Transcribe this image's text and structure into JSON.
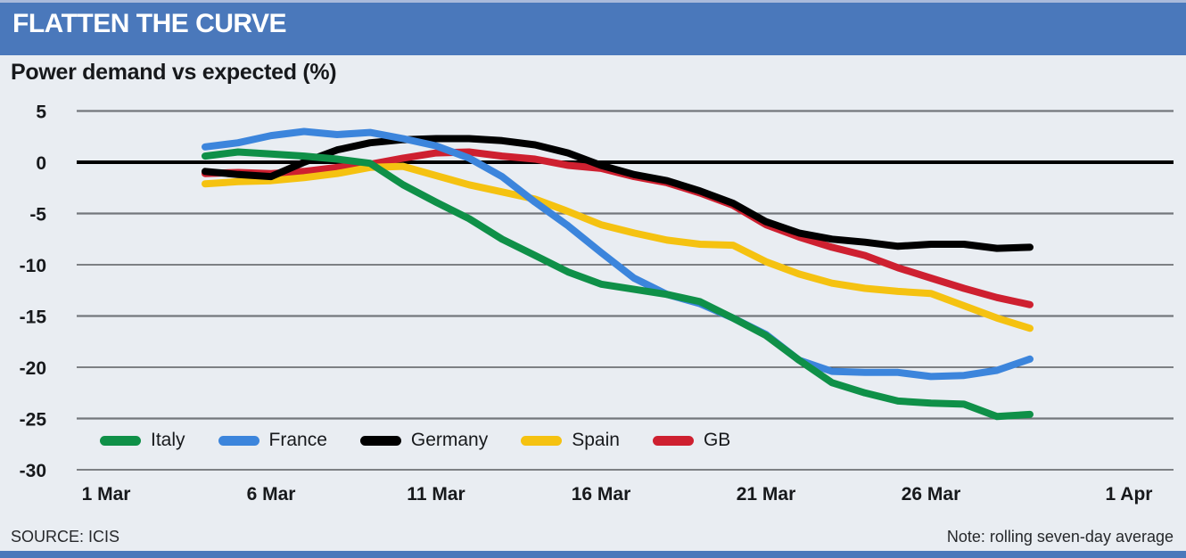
{
  "header": {
    "title": "FLATTEN THE CURVE"
  },
  "subtitle": "Power demand vs expected (%)",
  "footer": {
    "source": "SOURCE: ICIS",
    "note": "Note: rolling seven-day average"
  },
  "colors": {
    "accent_blue": "#4a78bb",
    "background": "#e9edf2",
    "gridline": "#73777c",
    "zero_line": "#000000",
    "text": "#17191c"
  },
  "chart_data": {
    "type": "line",
    "title": "Power demand vs expected (%)",
    "xlabel": "",
    "ylabel": "Power demand vs expected (%)",
    "ylim": [
      -30,
      5
    ],
    "grid": true,
    "legend_position": "bottom-inside",
    "y_ticks": [
      5,
      0,
      -5,
      -10,
      -15,
      -20,
      -25,
      -30
    ],
    "x_ticks": [
      {
        "label": "1 Mar",
        "day": 1
      },
      {
        "label": "6 Mar",
        "day": 6
      },
      {
        "label": "11 Mar",
        "day": 11
      },
      {
        "label": "16 Mar",
        "day": 16
      },
      {
        "label": "21 Mar",
        "day": 21
      },
      {
        "label": "26 Mar",
        "day": 26
      },
      {
        "label": "1 Apr",
        "day": 32
      }
    ],
    "start_day": 4,
    "dates": [
      "4 Mar",
      "5 Mar",
      "6 Mar",
      "7 Mar",
      "8 Mar",
      "9 Mar",
      "10 Mar",
      "11 Mar",
      "12 Mar",
      "13 Mar",
      "14 Mar",
      "15 Mar",
      "16 Mar",
      "17 Mar",
      "18 Mar",
      "19 Mar",
      "20 Mar",
      "21 Mar",
      "22 Mar",
      "23 Mar",
      "24 Mar",
      "25 Mar",
      "26 Mar",
      "27 Mar",
      "28 Mar",
      "29 Mar"
    ],
    "series": [
      {
        "name": "Italy",
        "color": "#0f9048",
        "values": [
          0.6,
          1.0,
          0.8,
          0.6,
          0.3,
          -0.1,
          -2.2,
          -3.9,
          -5.5,
          -7.5,
          -9.1,
          -10.7,
          -11.9,
          -12.4,
          -12.9,
          -13.6,
          -15.2,
          -16.9,
          -19.3,
          -21.5,
          -22.5,
          -23.3,
          -23.5,
          -23.6,
          -24.8,
          -24.6
        ]
      },
      {
        "name": "France",
        "color": "#3c85dc",
        "values": [
          1.5,
          1.9,
          2.6,
          3.0,
          2.7,
          2.9,
          2.3,
          1.6,
          0.4,
          -1.4,
          -3.9,
          -6.2,
          -8.8,
          -11.3,
          -12.9,
          -13.8,
          -15.2,
          -16.8,
          -19.3,
          -20.4,
          -20.5,
          -20.5,
          -20.9,
          -20.8,
          -20.3,
          -19.2
        ]
      },
      {
        "name": "Germany",
        "color": "#000000",
        "values": [
          -0.9,
          -1.2,
          -1.4,
          0.0,
          1.2,
          1.9,
          2.2,
          2.3,
          2.3,
          2.1,
          1.7,
          0.9,
          -0.3,
          -1.2,
          -1.8,
          -2.8,
          -4.0,
          -5.8,
          -6.9,
          -7.5,
          -7.8,
          -8.2,
          -8.0,
          -8.0,
          -8.4,
          -8.3
        ]
      },
      {
        "name": "Spain",
        "color": "#f5c211",
        "values": [
          -2.1,
          -1.9,
          -1.8,
          -1.5,
          -1.1,
          -0.5,
          -0.4,
          -1.3,
          -2.2,
          -2.9,
          -3.6,
          -4.8,
          -6.1,
          -6.9,
          -7.6,
          -8.0,
          -8.1,
          -9.7,
          -10.9,
          -11.8,
          -12.3,
          -12.6,
          -12.8,
          -14.0,
          -15.2,
          -16.2
        ]
      },
      {
        "name": "GB",
        "color": "#ce2030",
        "values": [
          -1.1,
          -1.0,
          -1.1,
          -0.9,
          -0.5,
          -0.2,
          0.4,
          0.9,
          1.0,
          0.6,
          0.3,
          -0.3,
          -0.6,
          -1.4,
          -2.0,
          -3.0,
          -4.2,
          -6.1,
          -7.3,
          -8.3,
          -9.1,
          -10.3,
          -11.3,
          -12.3,
          -13.2,
          -13.9
        ]
      }
    ]
  }
}
